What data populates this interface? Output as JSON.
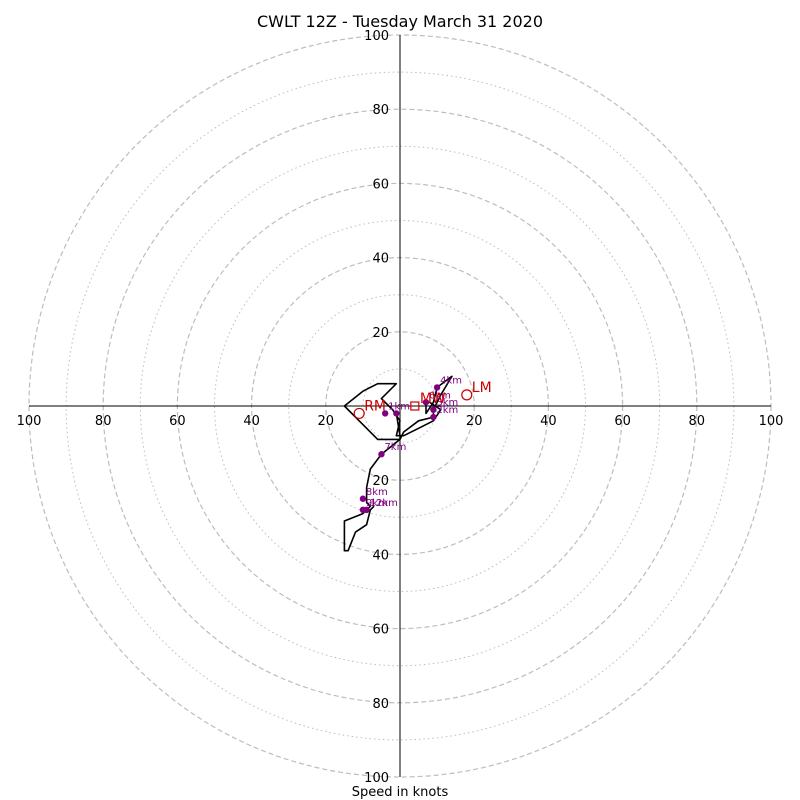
{
  "chart_data": {
    "type": "scatter",
    "subtype": "hodograph",
    "title": "CWLT 12Z - Tuesday March 31 2020",
    "xlabel": "Speed in knots",
    "xlim": [
      -100,
      100
    ],
    "ylim": [
      -100,
      100
    ],
    "tick_labels": [
      "100",
      "80",
      "60",
      "40",
      "20"
    ],
    "ring_values_dashed": [
      20,
      40,
      60,
      80,
      100
    ],
    "ring_values_dotted": [
      10,
      30,
      50,
      70,
      90
    ],
    "colors": {
      "hodograph": "#000000",
      "height_points": "#800080",
      "motion_markers": "#cc0000",
      "rings": "#bdbdbd"
    },
    "hodograph_trace": [
      {
        "u": -1,
        "v": -2
      },
      {
        "u": 0,
        "v": -8
      },
      {
        "u": 0,
        "v": -9
      },
      {
        "u": -6,
        "v": -9
      },
      {
        "u": -10,
        "v": -5
      },
      {
        "u": -15,
        "v": 0
      },
      {
        "u": -10,
        "v": 4
      },
      {
        "u": -6,
        "v": 6
      },
      {
        "u": -1,
        "v": 6
      },
      {
        "u": -5,
        "v": 2
      },
      {
        "u": -2,
        "v": -1
      },
      {
        "u": 0,
        "v": -4
      },
      {
        "u": -1,
        "v": -8
      },
      {
        "u": 1,
        "v": -8
      },
      {
        "u": 5,
        "v": -6
      },
      {
        "u": 9,
        "v": -4
      },
      {
        "u": 11,
        "v": -1
      },
      {
        "u": 8,
        "v": 1
      },
      {
        "u": 7,
        "v": 1
      },
      {
        "u": 7,
        "v": -2
      },
      {
        "u": 9,
        "v": 1
      },
      {
        "u": 10,
        "v": 5
      },
      {
        "u": 14,
        "v": 8
      },
      {
        "u": 11,
        "v": 3
      },
      {
        "u": 9,
        "v": -1
      },
      {
        "u": 9,
        "v": -3
      },
      {
        "u": 5,
        "v": -4
      },
      {
        "u": 1,
        "v": -7
      },
      {
        "u": 0,
        "v": -9
      },
      {
        "u": -5,
        "v": -13
      },
      {
        "u": -8,
        "v": -17
      },
      {
        "u": -9,
        "v": -22
      },
      {
        "u": -9,
        "v": -26
      },
      {
        "u": -8,
        "v": -27
      },
      {
        "u": -10,
        "v": -29
      },
      {
        "u": -15,
        "v": -31
      },
      {
        "u": -15,
        "v": -39
      },
      {
        "u": -14,
        "v": -39
      },
      {
        "u": -12,
        "v": -34
      },
      {
        "u": -9,
        "v": -32
      },
      {
        "u": -8,
        "v": -28
      },
      {
        "u": -7,
        "v": -27
      }
    ],
    "height_points": [
      {
        "label": "1km",
        "u": -4,
        "v": -2
      },
      {
        "label": "2km",
        "u": 9,
        "v": -3
      },
      {
        "label": "3km",
        "u": 9,
        "v": -1
      },
      {
        "label": "4km",
        "u": 10,
        "v": 5
      },
      {
        "label": "6km",
        "u": 7,
        "v": 1
      },
      {
        "label": "7km",
        "u": -5,
        "v": -13
      },
      {
        "label": "8km",
        "u": -10,
        "v": -25
      },
      {
        "label": "9km",
        "u": -10,
        "v": -28
      },
      {
        "label": "12km",
        "u": -9,
        "v": -28
      },
      {
        "label": "",
        "u": -1,
        "v": -2
      }
    ],
    "motion_markers": [
      {
        "label": "RM",
        "u": -11,
        "v": -2
      },
      {
        "label": "LM",
        "u": 18,
        "v": 3
      },
      {
        "label": "MW",
        "u": 4,
        "v": 0
      }
    ]
  }
}
